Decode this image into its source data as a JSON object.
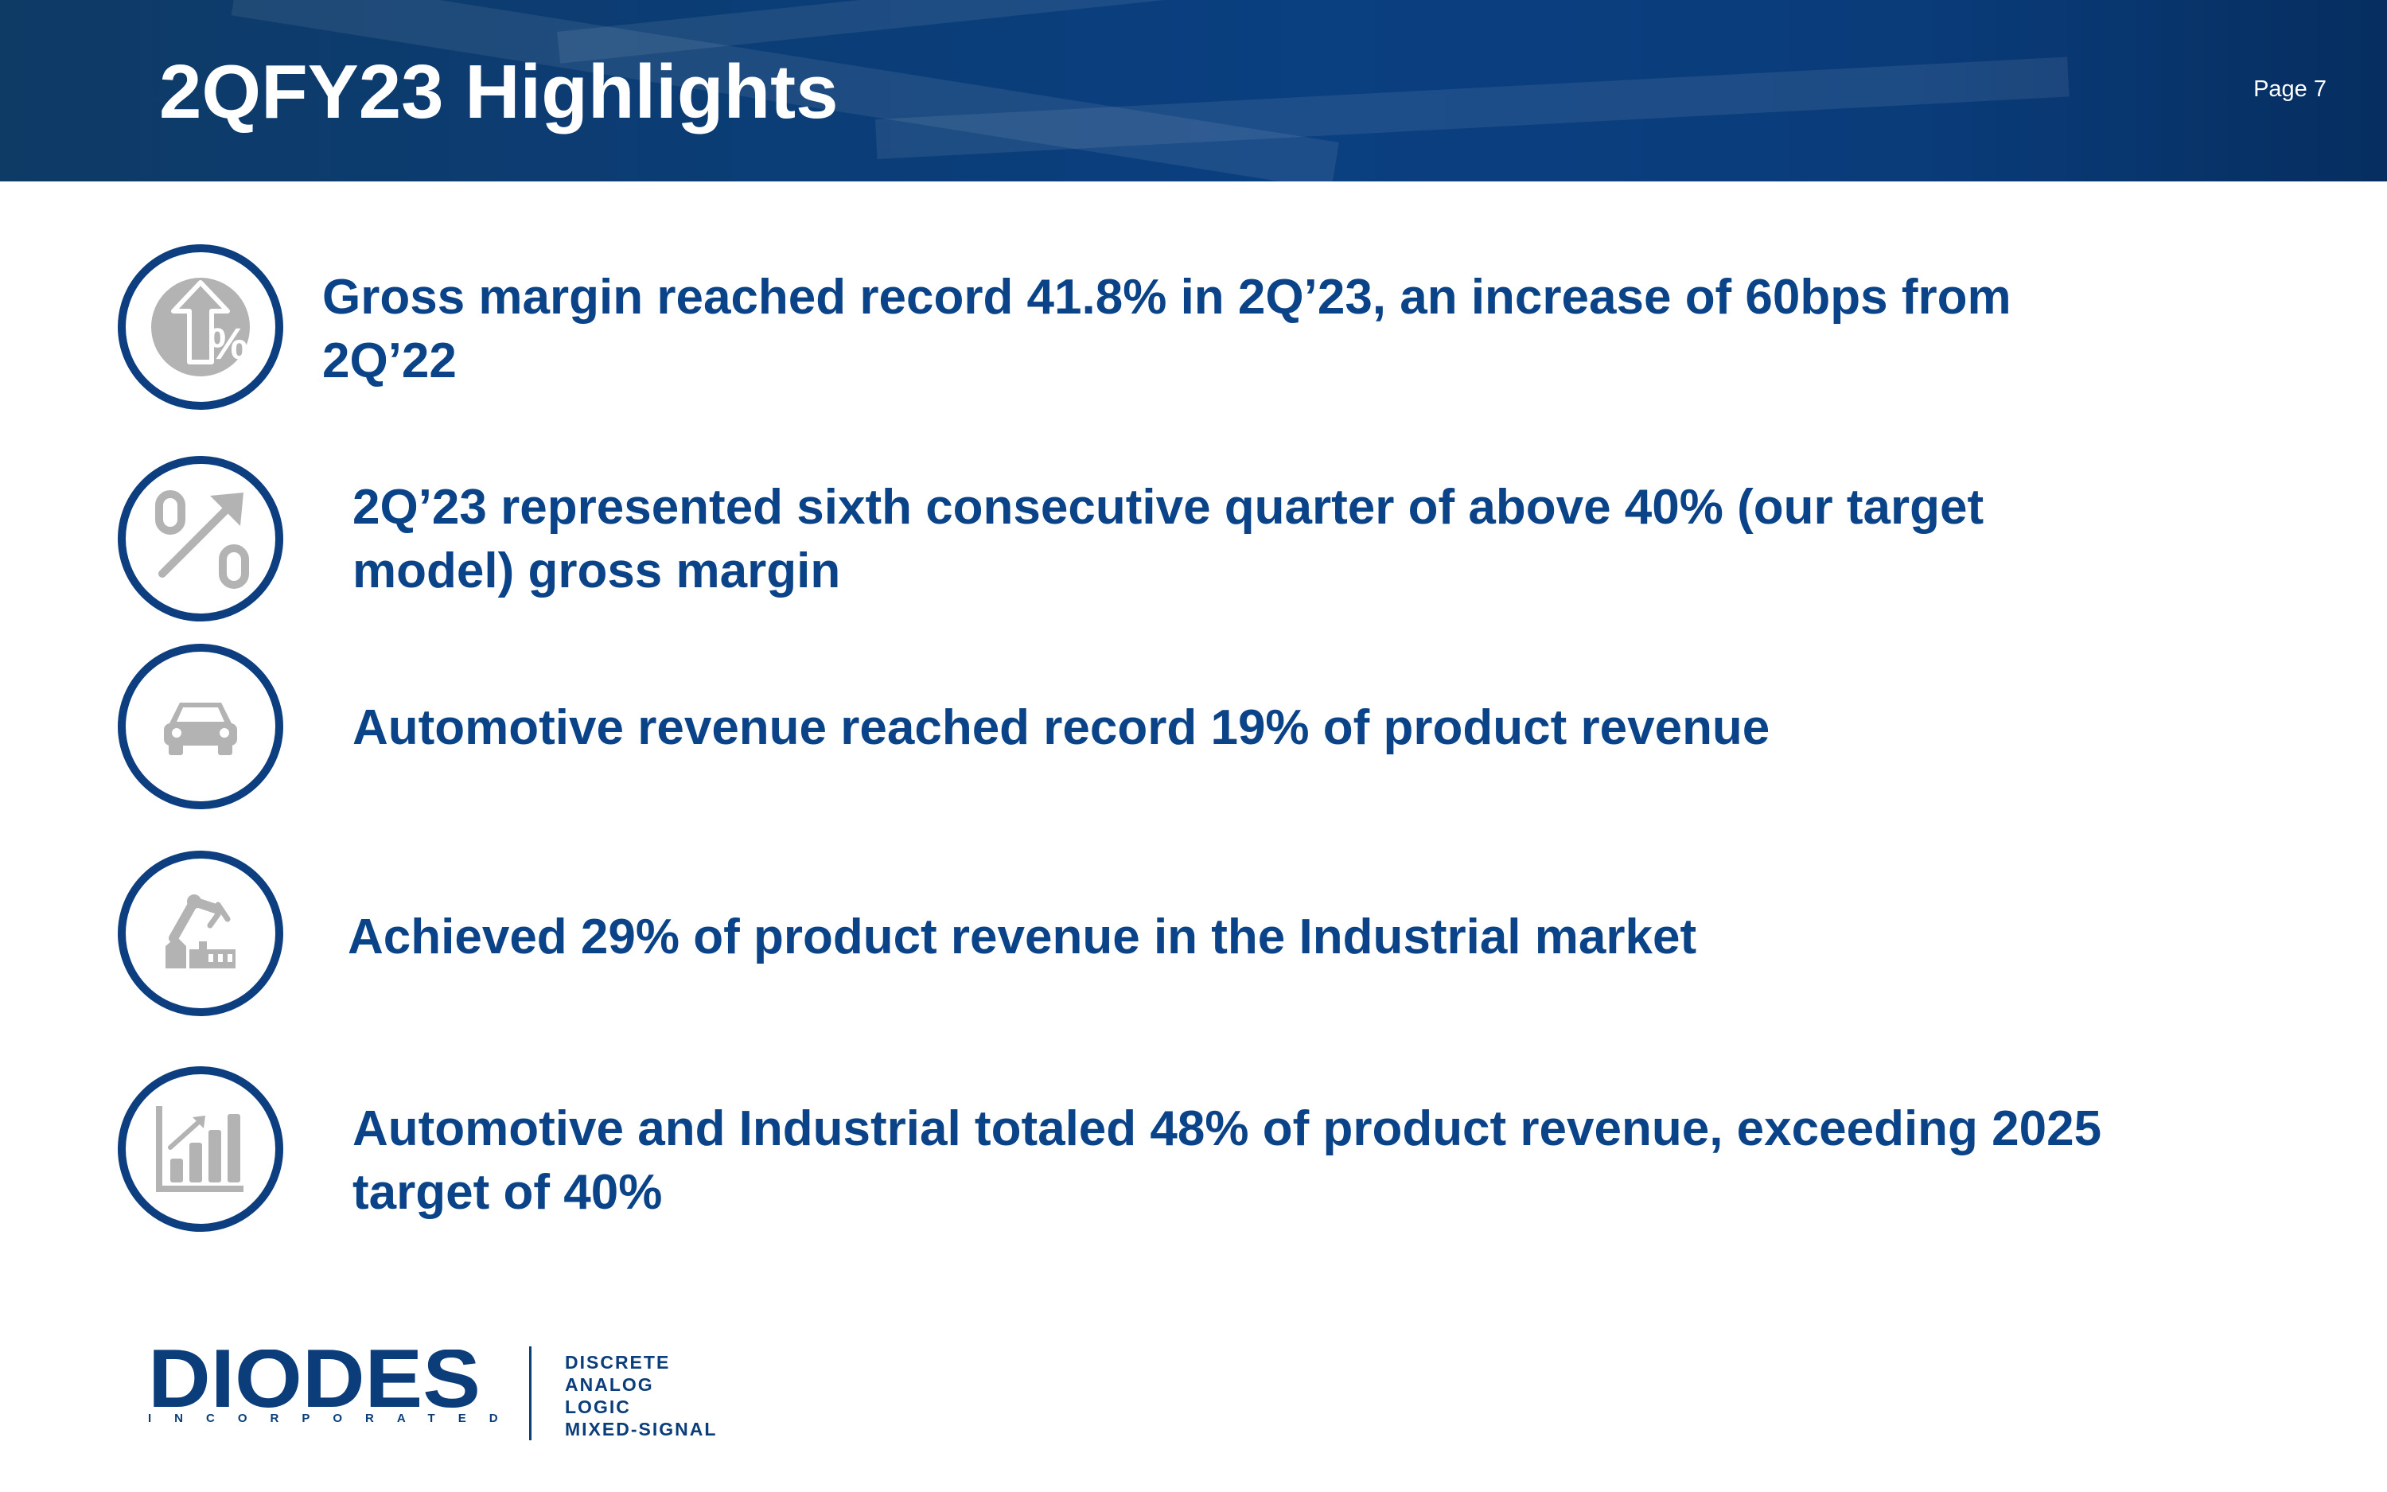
{
  "header": {
    "title": "2QFY23 Highlights",
    "page_label": "Page 7"
  },
  "highlights": [
    {
      "icon": "percent-up-arrow-icon",
      "text": "Gross margin reached record 41.8% in 2Q’23, an increase of 60bps from 2Q’22"
    },
    {
      "icon": "percent-trend-icon",
      "text": "2Q’23 represented sixth consecutive quarter of above 40% (our target model) gross margin"
    },
    {
      "icon": "car-icon",
      "text": "Automotive revenue reached record 19% of product revenue"
    },
    {
      "icon": "factory-robot-icon",
      "text": "Achieved 29% of product revenue in the Industrial market"
    },
    {
      "icon": "bar-chart-growth-icon",
      "text": "Automotive and Industrial totaled 48% of product revenue, exceeding 2025 target of 40%"
    }
  ],
  "footer": {
    "logo_name": "DIODES",
    "logo_subtitle": "INCORPORATED",
    "tags": [
      "DISCRETE",
      "ANALOG",
      "LOGIC",
      "MIXED-SIGNAL"
    ]
  },
  "colors": {
    "brand_blue": "#0b4388",
    "ring_blue": "#0d3f80",
    "icon_gray": "#b3b3b3"
  }
}
